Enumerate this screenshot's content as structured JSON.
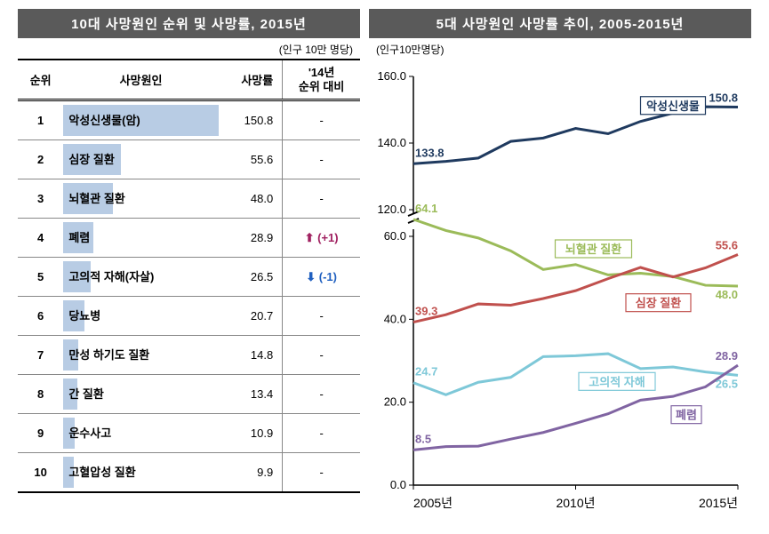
{
  "table_panel": {
    "header": "10대 사망원인 순위 및 사망률, 2015년",
    "unit": "(인구 10만 명당)",
    "columns": {
      "rank": "순위",
      "cause": "사망원인",
      "rate": "사망률",
      "change": "'14년\n순위 대비"
    },
    "max_rate": 150.8,
    "bar_color": "#b8cce4",
    "rows": [
      {
        "rank": 1,
        "cause": "악성신생물(암)",
        "rate": "150.8",
        "change": "-",
        "change_type": "none"
      },
      {
        "rank": 2,
        "cause": "심장 질환",
        "rate": "55.6",
        "change": "-",
        "change_type": "none"
      },
      {
        "rank": 3,
        "cause": "뇌혈관 질환",
        "rate": "48.0",
        "change": "-",
        "change_type": "none"
      },
      {
        "rank": 4,
        "cause": "폐렴",
        "rate": "28.9",
        "change": "(+1)",
        "change_type": "up"
      },
      {
        "rank": 5,
        "cause": "고의적 자해(자살)",
        "rate": "26.5",
        "change": "(-1)",
        "change_type": "down"
      },
      {
        "rank": 6,
        "cause": "당뇨병",
        "rate": "20.7",
        "change": "-",
        "change_type": "none"
      },
      {
        "rank": 7,
        "cause": "만성 하기도 질환",
        "rate": "14.8",
        "change": "-",
        "change_type": "none"
      },
      {
        "rank": 8,
        "cause": "간 질환",
        "rate": "13.4",
        "change": "-",
        "change_type": "none"
      },
      {
        "rank": 9,
        "cause": "운수사고",
        "rate": "10.9",
        "change": "-",
        "change_type": "none"
      },
      {
        "rank": 10,
        "cause": "고혈압성 질환",
        "rate": "9.9",
        "change": "-",
        "change_type": "none"
      }
    ]
  },
  "chart_panel": {
    "header": "5대 사망원인 사망률 추이, 2005-2015년",
    "unit": "(인구10만명당)",
    "type": "line",
    "x_categories": [
      "2005년",
      "2010년",
      "2015년"
    ],
    "upper_axis": {
      "min": 120,
      "max": 160,
      "ticks": [
        120,
        140,
        160
      ],
      "labels": [
        "120.0",
        "140.0",
        "160.0"
      ]
    },
    "lower_axis": {
      "min": 0,
      "max": 60,
      "ticks": [
        0,
        20,
        40,
        60
      ],
      "labels": [
        "0.0",
        "20.0",
        "40.0",
        "60.0"
      ]
    },
    "background_color": "#ffffff",
    "grid_color": "#cccccc",
    "series": [
      {
        "name": "악성신생물",
        "axis": "upper",
        "color": "#1f3a5f",
        "line_width": 3,
        "start_label": "133.8",
        "end_label": "150.8",
        "label_box": "악성신생물",
        "values": [
          133.8,
          134.5,
          135.5,
          140.5,
          141.5,
          144.4,
          142.8,
          146.5,
          149.0,
          150.9,
          150.8
        ]
      },
      {
        "name": "뇌혈관 질환",
        "axis": "lower",
        "color": "#9bbb59",
        "line_width": 3,
        "start_label": "64.1",
        "end_label": "48.0",
        "label_box": "뇌혈관 질환",
        "values": [
          64.1,
          61.4,
          59.6,
          56.5,
          52.0,
          53.2,
          50.7,
          51.1,
          50.3,
          48.2,
          48.0
        ]
      },
      {
        "name": "심장 질환",
        "axis": "lower",
        "color": "#c0504d",
        "line_width": 3,
        "start_label": "39.3",
        "end_label": "55.6",
        "label_box": "심장 질환",
        "values": [
          39.3,
          41.1,
          43.7,
          43.4,
          45.0,
          46.9,
          49.8,
          52.5,
          50.2,
          52.4,
          55.6
        ]
      },
      {
        "name": "고의적 자해",
        "axis": "lower",
        "color": "#7ec8d8",
        "line_width": 3,
        "start_label": "24.7",
        "end_label": "26.5",
        "label_box": "고의적 자해",
        "values": [
          24.7,
          21.8,
          24.8,
          26.0,
          31.0,
          31.2,
          31.7,
          28.1,
          28.5,
          27.3,
          26.5
        ]
      },
      {
        "name": "폐렴",
        "axis": "lower",
        "color": "#8064a2",
        "line_width": 3,
        "start_label": "8.5",
        "end_label": "28.9",
        "label_box": "폐렴",
        "values": [
          8.5,
          9.3,
          9.4,
          11.1,
          12.7,
          14.9,
          17.2,
          20.5,
          21.4,
          23.7,
          28.9
        ]
      }
    ],
    "label_fontsize": 13,
    "axis_fontsize": 13
  }
}
